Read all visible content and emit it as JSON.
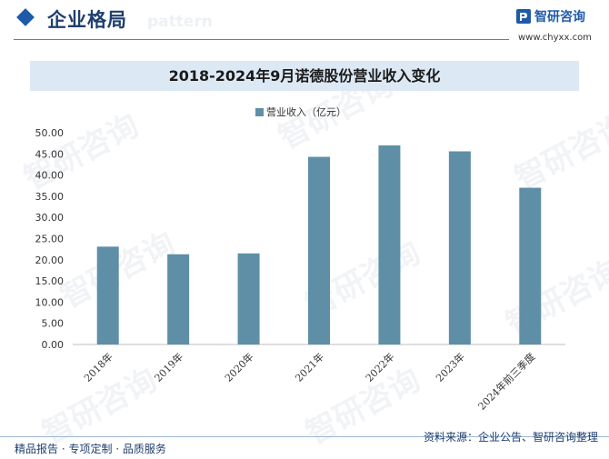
{
  "header": {
    "section_title": "企业格局",
    "watermark_word": "pattern",
    "logo_name": "智研咨询",
    "logo_url": "www.chyxx.com"
  },
  "watermark": {
    "text": "智研咨询"
  },
  "colors": {
    "bar": "#5e8fa6",
    "title_bar": "#dce8f4",
    "accent": "#1e5aa8"
  },
  "chart_data": {
    "type": "bar",
    "title": "2018-2024年9月诺德股份营业收入变化",
    "categories": [
      "2018年",
      "2019年",
      "2020年",
      "2021年",
      "2022年",
      "2023年",
      "2024年前三季度"
    ],
    "series": [
      {
        "name": "营业收入（亿元）",
        "values": [
          23.1,
          21.3,
          21.5,
          44.3,
          47.0,
          45.6,
          37.0
        ]
      }
    ],
    "ylim": [
      0,
      50
    ],
    "yticks": [
      "0.00",
      "5.00",
      "10.00",
      "15.00",
      "20.00",
      "25.00",
      "30.00",
      "35.00",
      "40.00",
      "45.00",
      "50.00"
    ],
    "ytick_values": [
      0,
      5,
      10,
      15,
      20,
      25,
      30,
      35,
      40,
      45,
      50
    ],
    "grid": false,
    "legend": "top-center"
  },
  "footer": {
    "left": "精品报告 · 专项定制 · 品质服务",
    "right": "资料来源：企业公告、智研咨询整理"
  }
}
